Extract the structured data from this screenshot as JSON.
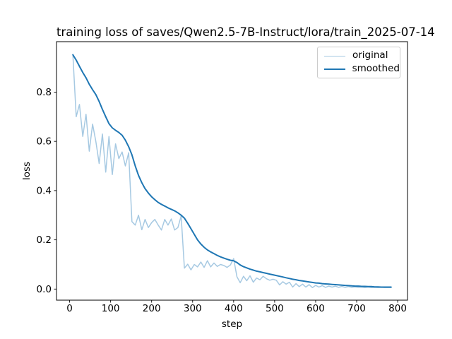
{
  "chart_data": {
    "type": "line",
    "title": "training loss of saves/Qwen2.5-7B-Instruct/lora/train_2025-07-14",
    "xlabel": "step",
    "ylabel": "loss",
    "xlim": [
      -32,
      824
    ],
    "ylim": [
      -0.045,
      1.005
    ],
    "xticks": [
      0,
      100,
      200,
      300,
      400,
      500,
      600,
      700,
      800
    ],
    "yticks": [
      0.0,
      0.2,
      0.4,
      0.6,
      0.8
    ],
    "grid": false,
    "legend": {
      "position": "upper right",
      "entries": [
        {
          "label": "original",
          "color": "#a6c9e2"
        },
        {
          "label": "smoothed",
          "color": "#1f77b4"
        }
      ]
    },
    "x": [
      8,
      16,
      24,
      32,
      40,
      48,
      56,
      64,
      72,
      80,
      88,
      96,
      104,
      112,
      120,
      128,
      136,
      144,
      152,
      160,
      168,
      176,
      184,
      192,
      200,
      208,
      216,
      224,
      232,
      240,
      248,
      256,
      264,
      272,
      280,
      288,
      296,
      304,
      312,
      320,
      328,
      336,
      344,
      352,
      360,
      368,
      376,
      384,
      392,
      400,
      408,
      416,
      424,
      432,
      440,
      448,
      456,
      464,
      472,
      480,
      488,
      496,
      504,
      512,
      520,
      528,
      536,
      544,
      552,
      560,
      568,
      576,
      584,
      592,
      600,
      608,
      616,
      624,
      632,
      640,
      648,
      656,
      664,
      672,
      680,
      688,
      696,
      704,
      712,
      720,
      728,
      736,
      744,
      752,
      760,
      768,
      776,
      784
    ],
    "series": [
      {
        "name": "original",
        "color": "#a6c9e2",
        "width": 1.5,
        "values": [
          0.952,
          0.7,
          0.75,
          0.62,
          0.71,
          0.56,
          0.67,
          0.6,
          0.51,
          0.63,
          0.475,
          0.62,
          0.465,
          0.59,
          0.53,
          0.557,
          0.5,
          0.554,
          0.274,
          0.26,
          0.3,
          0.241,
          0.283,
          0.25,
          0.27,
          0.283,
          0.26,
          0.24,
          0.283,
          0.26,
          0.285,
          0.24,
          0.25,
          0.297,
          0.085,
          0.101,
          0.078,
          0.1,
          0.09,
          0.11,
          0.088,
          0.115,
          0.09,
          0.106,
          0.092,
          0.1,
          0.096,
          0.088,
          0.098,
          0.124,
          0.05,
          0.026,
          0.052,
          0.034,
          0.054,
          0.028,
          0.045,
          0.038,
          0.052,
          0.042,
          0.036,
          0.04,
          0.036,
          0.017,
          0.03,
          0.02,
          0.028,
          0.008,
          0.022,
          0.01,
          0.02,
          0.008,
          0.018,
          0.006,
          0.015,
          0.008,
          0.014,
          0.007,
          0.012,
          0.008,
          0.012,
          0.007,
          0.011,
          0.007,
          0.01,
          0.007,
          0.009,
          0.007,
          0.008,
          0.006,
          0.008,
          0.006,
          0.007,
          0.006,
          0.007,
          0.006,
          0.006,
          0.006
        ]
      },
      {
        "name": "smoothed",
        "color": "#1f77b4",
        "width": 2,
        "values": [
          0.952,
          0.93,
          0.905,
          0.88,
          0.858,
          0.832,
          0.81,
          0.79,
          0.762,
          0.73,
          0.7,
          0.672,
          0.655,
          0.645,
          0.636,
          0.625,
          0.605,
          0.578,
          0.545,
          0.5,
          0.462,
          0.432,
          0.408,
          0.39,
          0.375,
          0.363,
          0.352,
          0.344,
          0.337,
          0.33,
          0.324,
          0.318,
          0.31,
          0.3,
          0.288,
          0.267,
          0.245,
          0.222,
          0.2,
          0.183,
          0.17,
          0.159,
          0.151,
          0.144,
          0.137,
          0.131,
          0.126,
          0.121,
          0.117,
          0.115,
          0.108,
          0.098,
          0.091,
          0.086,
          0.081,
          0.077,
          0.073,
          0.07,
          0.067,
          0.064,
          0.061,
          0.058,
          0.055,
          0.052,
          0.049,
          0.046,
          0.043,
          0.04,
          0.038,
          0.035,
          0.033,
          0.031,
          0.029,
          0.027,
          0.025,
          0.024,
          0.022,
          0.021,
          0.02,
          0.019,
          0.018,
          0.017,
          0.016,
          0.015,
          0.014,
          0.013,
          0.012,
          0.012,
          0.011,
          0.011,
          0.01,
          0.01,
          0.009,
          0.009,
          0.008,
          0.008,
          0.008,
          0.008
        ]
      }
    ]
  }
}
